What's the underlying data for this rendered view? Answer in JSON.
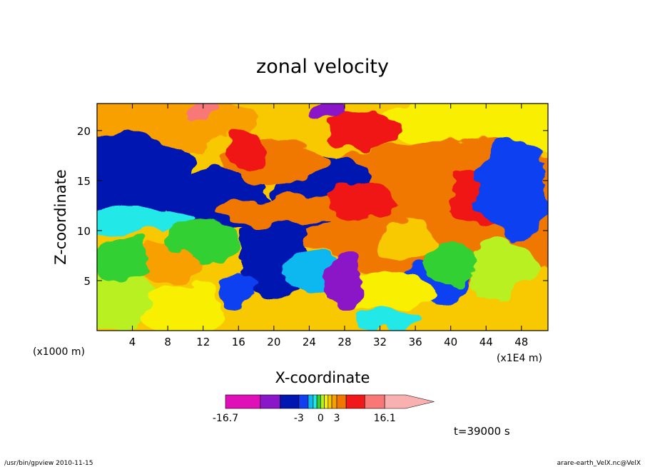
{
  "chart_data": {
    "type": "heatmap",
    "title": "zonal velocity",
    "xlabel": "X-coordinate",
    "ylabel": "Z-coordinate",
    "x_unit": "(x1E4 m)",
    "y_unit": "(x1000 m)",
    "xlim": [
      0,
      51
    ],
    "ylim": [
      0,
      22.7
    ],
    "x_ticks": [
      "4",
      "8",
      "12",
      "16",
      "20",
      "24",
      "28",
      "32",
      "36",
      "40",
      "44",
      "48"
    ],
    "y_ticks": [
      "5",
      "10",
      "15",
      "20"
    ],
    "colorbar": {
      "min": -16.7,
      "max": 16.1,
      "tick_labels": [
        "-16.7",
        "-3",
        "0",
        "3",
        "16.1"
      ],
      "tick_values": [
        -16.7,
        -3,
        0,
        3,
        16.1
      ],
      "levels": [
        -16.7,
        -12,
        -7,
        -3,
        -2,
        -1,
        -0.5,
        0,
        0.5,
        1,
        2,
        3,
        7,
        12,
        16.1
      ],
      "colors": [
        "#e010b8",
        "#8a18c8",
        "#0016b0",
        "#1040f0",
        "#10b8f0",
        "#20e8e8",
        "#30d030",
        "#b8f020",
        "#f8f000",
        "#f8c800",
        "#f8a000",
        "#f07800",
        "#f01818",
        "#f87878",
        "#f8b0b0"
      ]
    },
    "time_label": "t=39000 s"
  },
  "footer": {
    "left": "/usr/bin/gpview   2010-11-15",
    "right": "arare-earth_VelX.nc@VelX"
  }
}
